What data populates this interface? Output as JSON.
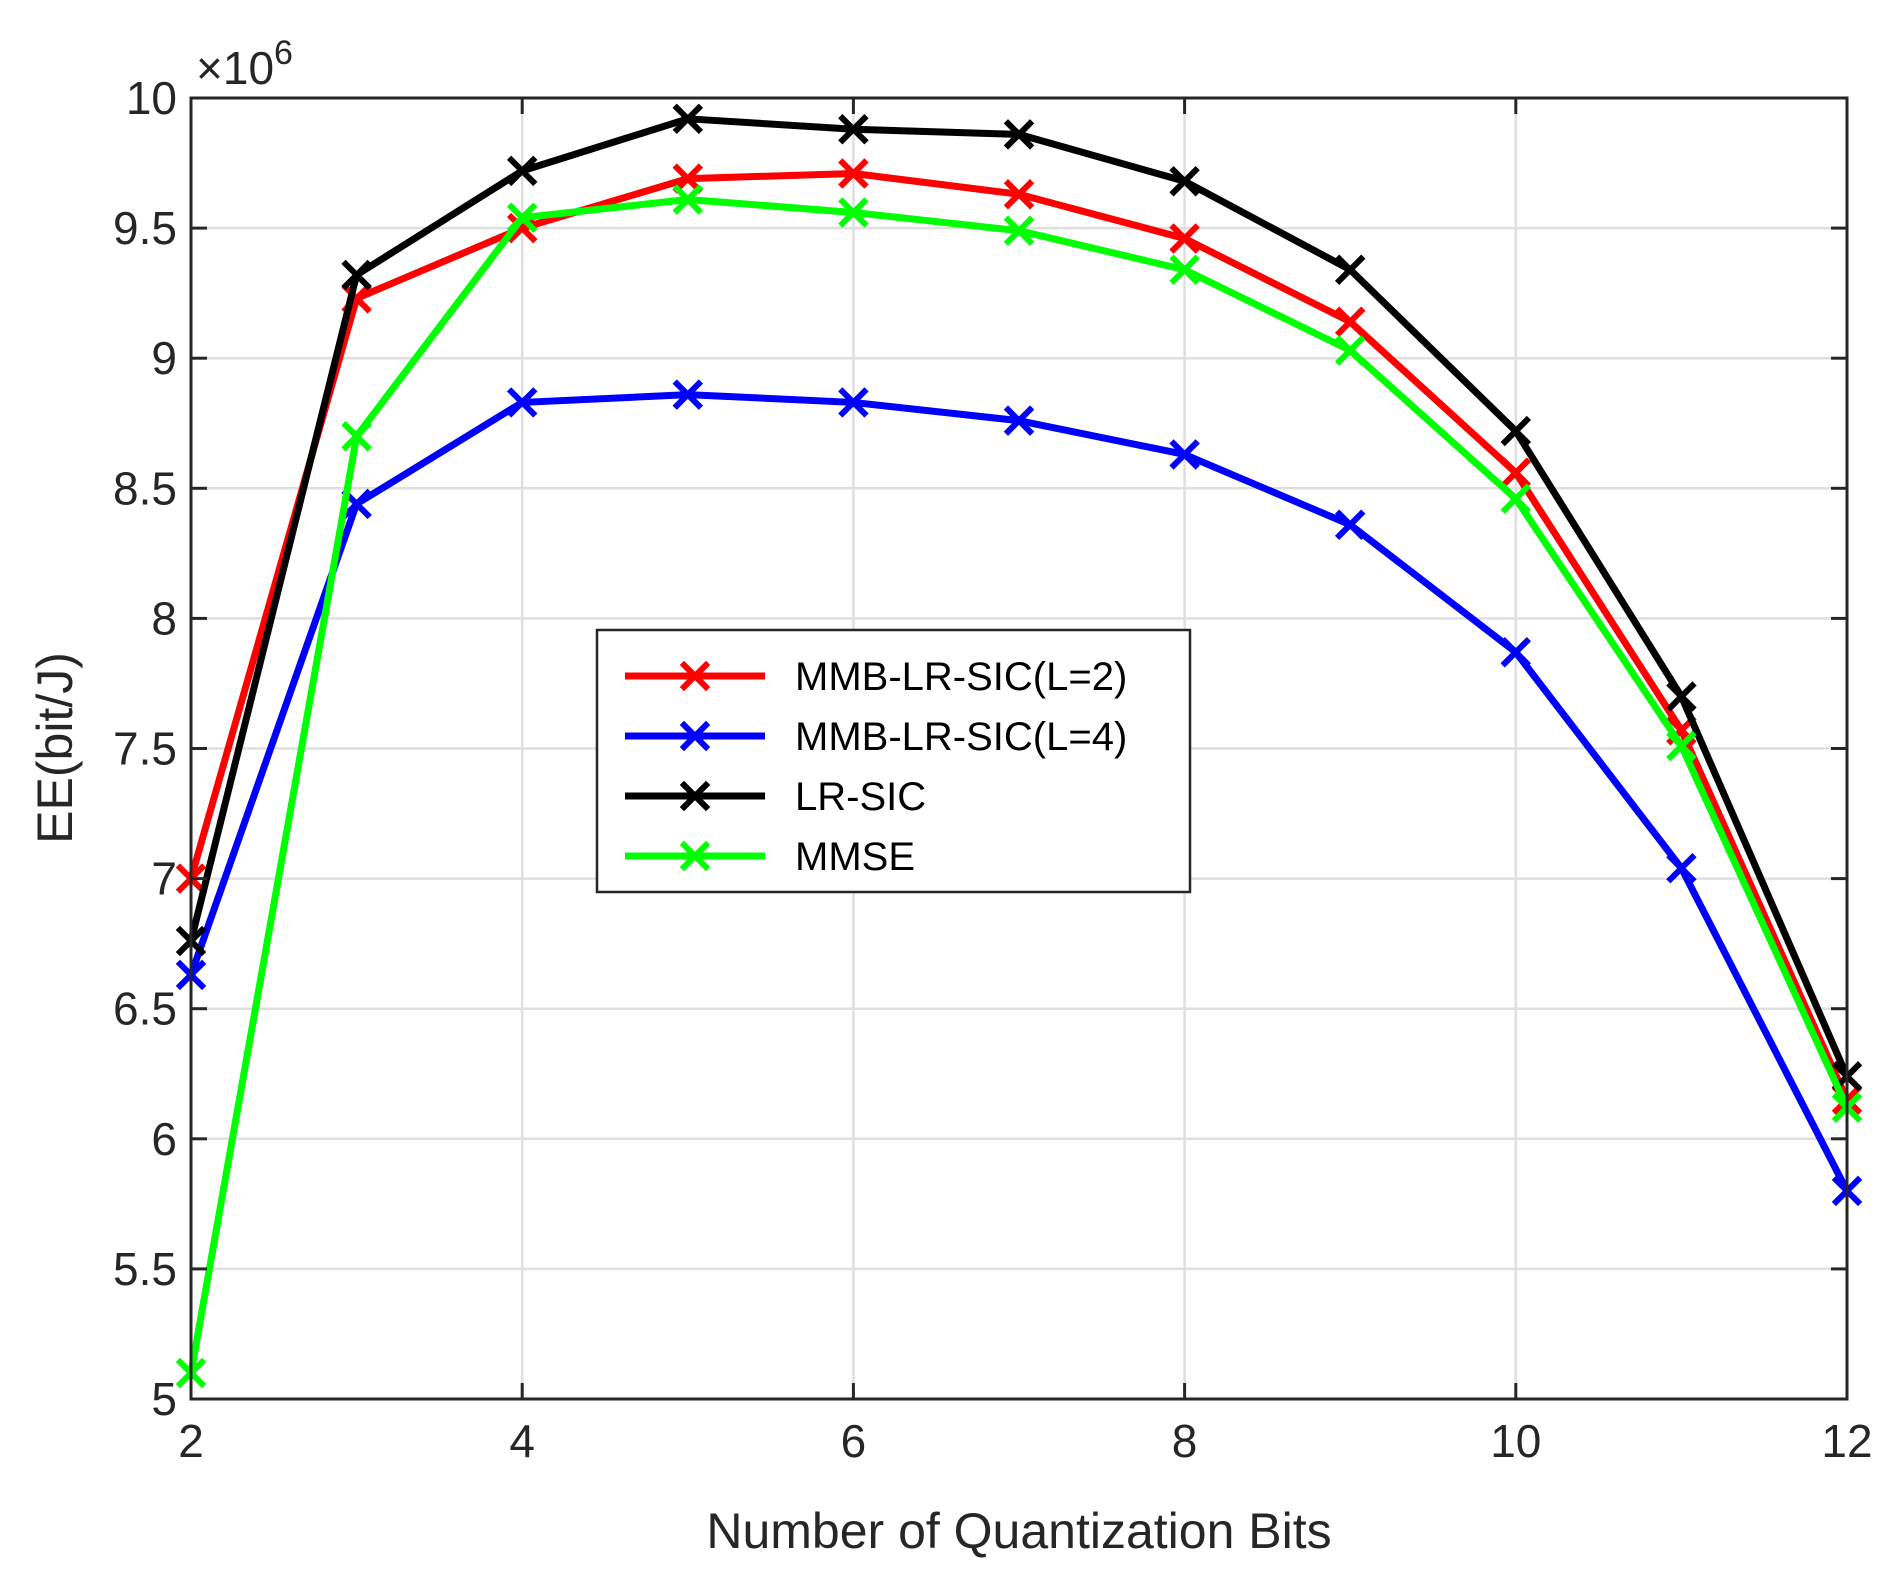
{
  "chart_data": {
    "type": "line",
    "title": "",
    "xlabel": "Number of Quantization Bits",
    "ylabel": "EE(bit/J)",
    "y_multiplier": "×10",
    "y_multiplier_exponent": "6",
    "xlim": [
      2,
      12
    ],
    "ylim": [
      5,
      10
    ],
    "x_ticks": [
      2,
      4,
      6,
      8,
      10,
      12
    ],
    "y_ticks": [
      5,
      5.5,
      6,
      6.5,
      7,
      7.5,
      8,
      8.5,
      9,
      9.5,
      10
    ],
    "grid": true,
    "legend_position": "center-left",
    "marker": "x",
    "x": [
      2,
      3,
      4,
      5,
      6,
      7,
      8,
      9,
      10,
      11,
      12
    ],
    "series": [
      {
        "name": "MMB-LR-SIC(L=2)",
        "color": "#ff0000",
        "values": [
          7.0,
          9.23,
          9.5,
          9.69,
          9.71,
          9.63,
          9.46,
          9.14,
          8.56,
          7.57,
          6.15
        ]
      },
      {
        "name": "MMB-LR-SIC(L=4)",
        "color": "#0000ff",
        "values": [
          6.63,
          8.44,
          8.83,
          8.86,
          8.83,
          8.76,
          8.63,
          8.36,
          7.87,
          7.04,
          5.8
        ]
      },
      {
        "name": "LR-SIC",
        "color": "#000000",
        "values": [
          6.76,
          9.32,
          9.72,
          9.92,
          9.88,
          9.86,
          9.68,
          9.34,
          8.72,
          7.7,
          6.24
        ]
      },
      {
        "name": "MMSE",
        "color": "#00ff00",
        "values": [
          5.1,
          8.7,
          9.54,
          9.61,
          9.56,
          9.49,
          9.34,
          9.03,
          8.46,
          7.51,
          6.12
        ]
      }
    ]
  }
}
